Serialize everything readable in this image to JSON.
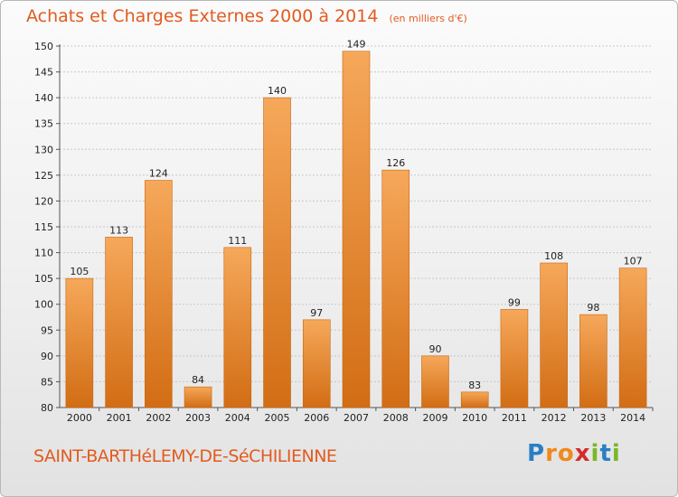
{
  "header": {
    "title": "Achats et Charges Externes 2000 à 2014",
    "subtitle": "(en milliers d'€)"
  },
  "footer": {
    "commune": "SAINT-BARTHéLEMY-DE-SéCHILIENNE",
    "logo": {
      "letters": [
        "P",
        "r",
        "o",
        "x",
        "i",
        "t",
        "i"
      ],
      "colors": [
        "#2a7fc4",
        "#f08a1c",
        "#f08a1c",
        "#d62b2b",
        "#79b829",
        "#2a7fc4",
        "#79b829"
      ]
    }
  },
  "chart_data": {
    "type": "bar",
    "title": "Achats et Charges Externes 2000 à 2014",
    "subtitle": "(en milliers d'€)",
    "xlabel": "",
    "ylabel": "",
    "categories": [
      "2000",
      "2001",
      "2002",
      "2003",
      "2004",
      "2005",
      "2006",
      "2007",
      "2008",
      "2009",
      "2010",
      "2011",
      "2012",
      "2013",
      "2014"
    ],
    "values": [
      105,
      113,
      124,
      84,
      111,
      140,
      97,
      149,
      126,
      90,
      83,
      99,
      108,
      98,
      107
    ],
    "ylim": [
      80,
      150
    ],
    "yticks": [
      80,
      85,
      90,
      95,
      100,
      105,
      110,
      115,
      120,
      125,
      130,
      135,
      140,
      145,
      150
    ],
    "grid": true,
    "bar_color_top": "#f6a85a",
    "bar_color_bottom": "#d26d14"
  }
}
